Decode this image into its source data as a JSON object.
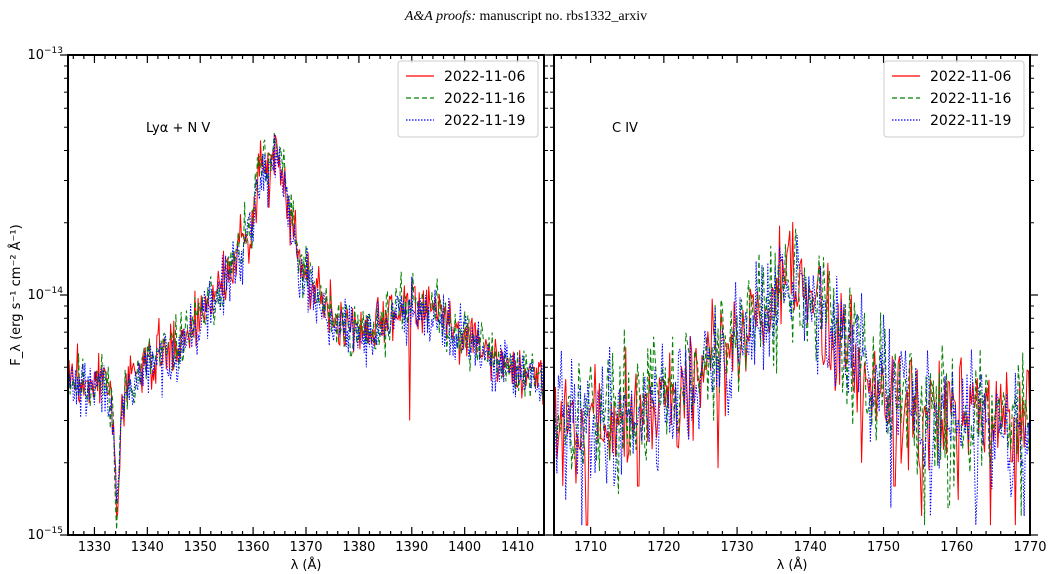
{
  "page": {
    "header_italic": "A&A proofs:",
    "header_rest": " manuscript no. rbs1332_arxiv"
  },
  "chart_data": [
    {
      "type": "line",
      "annotation": "Lyα + N V",
      "xlabel": "λ (Å)",
      "ylabel": "F_λ (erg s⁻¹ cm⁻² Å⁻¹)",
      "xlim": [
        1325,
        1415
      ],
      "ylim": [
        1e-15,
        1e-13
      ],
      "yscale": "log",
      "xticks": [
        1330,
        1340,
        1350,
        1360,
        1370,
        1380,
        1390,
        1400,
        1410
      ],
      "yticks": [
        {
          "value": 1e-15,
          "base": "10",
          "exp": "−15"
        },
        {
          "value": 1e-14,
          "base": "10",
          "exp": "−14"
        },
        {
          "value": 1e-13,
          "base": "10",
          "exp": "−13"
        }
      ],
      "legend_position": "top-right",
      "profile": {
        "base": [
          [
            1325,
            4.6e-15
          ],
          [
            1328,
            4.2e-15
          ],
          [
            1331,
            4.4e-15
          ],
          [
            1333.3,
            4e-15
          ],
          [
            1334.2,
            1.1e-15
          ],
          [
            1335.2,
            3.4e-15
          ],
          [
            1337,
            4.4e-15
          ],
          [
            1340,
            5.2e-15
          ],
          [
            1345,
            6e-15
          ],
          [
            1350,
            8e-15
          ],
          [
            1355,
            1.2e-14
          ],
          [
            1358,
            1.6e-14
          ],
          [
            1359.6,
            1.8e-14
          ],
          [
            1360.2,
            2.2e-14
          ],
          [
            1361,
            3.5e-14
          ],
          [
            1362,
            3.4e-14
          ],
          [
            1363,
            3e-14
          ],
          [
            1364.2,
            4.2e-14
          ],
          [
            1365,
            4e-14
          ],
          [
            1366,
            3.2e-14
          ],
          [
            1367,
            2.2e-14
          ],
          [
            1368,
            1.6e-14
          ],
          [
            1370,
            1.2e-14
          ],
          [
            1375,
            8e-15
          ],
          [
            1380,
            7e-15
          ],
          [
            1384,
            7.5e-15
          ],
          [
            1387,
            8.5e-15
          ],
          [
            1390,
            9.5e-15
          ],
          [
            1393,
            9.2e-15
          ],
          [
            1396,
            8e-15
          ],
          [
            1400,
            6.8e-15
          ],
          [
            1405,
            5.6e-15
          ],
          [
            1410,
            4.8e-15
          ],
          [
            1415,
            4.3e-15
          ]
        ],
        "noise_dex": 0.06
      },
      "series": [
        {
          "name": "2022-11-06",
          "color": "#ff0000",
          "dash": "none",
          "seed": 3,
          "offset": 0.005,
          "spikes": [
            [
              1389.6,
              3e-15
            ]
          ]
        },
        {
          "name": "2022-11-16",
          "color": "#008000",
          "dash": "5,3",
          "seed": 11,
          "offset": 0.0
        },
        {
          "name": "2022-11-19",
          "color": "#0000ff",
          "dash": "1.5,1.5",
          "seed": 29,
          "offset": -0.02
        }
      ]
    },
    {
      "type": "line",
      "annotation": "C IV",
      "xlabel": "λ (Å)",
      "ylim": [
        1e-15,
        1e-13
      ],
      "yscale": "log",
      "xlim": [
        1705,
        1770
      ],
      "xticks": [
        1710,
        1720,
        1730,
        1740,
        1750,
        1760,
        1770
      ],
      "legend_position": "top-right",
      "profile": {
        "base": [
          [
            1705,
            3.2e-15
          ],
          [
            1712,
            3.2e-15
          ],
          [
            1720,
            3.6e-15
          ],
          [
            1726,
            4.8e-15
          ],
          [
            1730,
            6.5e-15
          ],
          [
            1733,
            8.5e-15
          ],
          [
            1736,
            1e-14
          ],
          [
            1738,
            1.1e-14
          ],
          [
            1740,
            9.5e-15
          ],
          [
            1743,
            7.2e-15
          ],
          [
            1747,
            5e-15
          ],
          [
            1752,
            3.8e-15
          ],
          [
            1758,
            3.1e-15
          ],
          [
            1764,
            3e-15
          ],
          [
            1770,
            3e-15
          ]
        ],
        "noise_dex": 0.13
      },
      "series": [
        {
          "name": "2022-11-06",
          "color": "#ff0000",
          "dash": "none",
          "seed": 5,
          "offset": 0.0,
          "spikes": [
            [
              1706.2,
              1.6e-15
            ],
            [
              1709.5,
              1.1e-15
            ],
            [
              1716.5,
              1.6e-15
            ],
            [
              1727.4,
              1.9e-15
            ],
            [
              1747.0,
              2e-15
            ],
            [
              1751.5,
              1.6e-15
            ],
            [
              1755.2,
              1.2e-15
            ],
            [
              1760.2,
              1.4e-15
            ],
            [
              1764.6,
              1.1e-15
            ],
            [
              1768.0,
              1.1e-15
            ]
          ]
        },
        {
          "name": "2022-11-16",
          "color": "#008000",
          "dash": "5,3",
          "seed": 17,
          "offset": 0.01,
          "spikes": [
            [
              1735.2,
              1.5e-14
            ],
            [
              1755.6,
              1.1e-15
            ],
            [
              1758.9,
              1.3e-15
            ],
            [
              1768.8,
              1.2e-15
            ]
          ]
        },
        {
          "name": "2022-11-19",
          "color": "#0000ff",
          "dash": "1.5,1.5",
          "seed": 41,
          "offset": -0.01,
          "spikes": [
            [
              1706.6,
              1.4e-15
            ],
            [
              1708.8,
              1.1e-15
            ],
            [
              1713.2,
              1.6e-15
            ],
            [
              1751.0,
              1.3e-15
            ],
            [
              1756.4,
              1.2e-15
            ],
            [
              1762.6,
              1.1e-15
            ],
            [
              1769.2,
              1.2e-15
            ]
          ]
        }
      ]
    }
  ]
}
